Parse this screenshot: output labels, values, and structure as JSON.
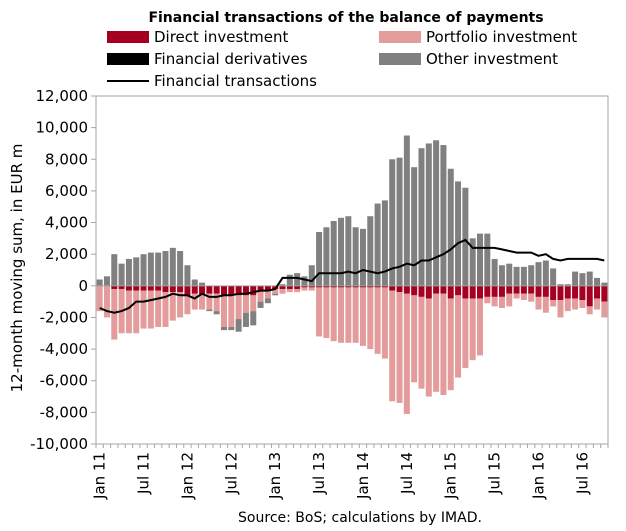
{
  "chart_data": {
    "type": "bar",
    "title": "Financial transactions of the balance of payments",
    "ylabel": "12-month moving sum, in EUR m",
    "source": "Source: BoS; calculations by IMAD.",
    "ylim": [
      -10000,
      12000
    ],
    "yticks": [
      -10000,
      -8000,
      -6000,
      -4000,
      -2000,
      0,
      2000,
      4000,
      6000,
      8000,
      10000,
      12000
    ],
    "ytick_labels": [
      "-10,000",
      "-8,000",
      "-6,000",
      "-4,000",
      "-2,000",
      "0",
      "2,000",
      "4,000",
      "6,000",
      "8,000",
      "10,000",
      "12,000"
    ],
    "xtick_labels": [
      {
        "index": 0,
        "label": "Jan 11"
      },
      {
        "index": 6,
        "label": "Jul 11"
      },
      {
        "index": 12,
        "label": "Jan 12"
      },
      {
        "index": 18,
        "label": "Jul 12"
      },
      {
        "index": 24,
        "label": "Jan 13"
      },
      {
        "index": 30,
        "label": "Jul 13"
      },
      {
        "index": 36,
        "label": "Jan 14"
      },
      {
        "index": 42,
        "label": "Jul 14"
      },
      {
        "index": 48,
        "label": "Jan 15"
      },
      {
        "index": 54,
        "label": "Jul 15"
      },
      {
        "index": 60,
        "label": "Jan 16"
      },
      {
        "index": 66,
        "label": "Jul 16"
      }
    ],
    "gridlines": false,
    "legend_position": "top",
    "series": [
      {
        "name": "Direct investment",
        "kind": "bar",
        "color": "#a50021",
        "values": [
          0,
          0,
          -200,
          -200,
          -300,
          -300,
          -300,
          -300,
          -300,
          -400,
          -400,
          -400,
          -600,
          -500,
          -600,
          -500,
          -500,
          -600,
          -600,
          -600,
          -600,
          -600,
          -300,
          -300,
          -200,
          -200,
          -200,
          -200,
          -100,
          -100,
          -100,
          -100,
          -100,
          -100,
          -100,
          -100,
          -100,
          -100,
          -100,
          -100,
          -300,
          -400,
          -500,
          -600,
          -700,
          -800,
          -500,
          -500,
          -800,
          -600,
          -800,
          -800,
          -800,
          -700,
          -700,
          -700,
          -500,
          -500,
          -500,
          -500,
          -700,
          -700,
          -900,
          -900,
          -800,
          -800,
          -900,
          -1300,
          -800,
          -1000
        ]
      },
      {
        "name": "Portfolio investment",
        "kind": "bar",
        "color": "#e39b9b",
        "values": [
          -1600,
          -2000,
          -3200,
          -2800,
          -2700,
          -2700,
          -2400,
          -2400,
          -2300,
          -2200,
          -1800,
          -1600,
          -1200,
          -1000,
          -900,
          -1000,
          -1100,
          -2000,
          -2000,
          -1500,
          -1100,
          -1000,
          -700,
          -500,
          -300,
          -300,
          -200,
          -200,
          -200,
          -200,
          -3100,
          -3200,
          -3400,
          -3500,
          -3500,
          -3500,
          -3700,
          -3900,
          -4200,
          -4500,
          -7000,
          -7000,
          -7600,
          -5500,
          -5800,
          -6200,
          -6200,
          -6400,
          -5800,
          -5200,
          -4400,
          -3900,
          -3600,
          -400,
          -600,
          -700,
          -800,
          -300,
          -400,
          -500,
          -800,
          -1000,
          -400,
          -1100,
          -800,
          -700,
          -500,
          -500,
          -700,
          -1000
        ]
      },
      {
        "name": "Financial derivatives",
        "kind": "bar",
        "color": "#000000",
        "values": [
          0,
          0,
          0,
          0,
          0,
          0,
          0,
          0,
          0,
          0,
          0,
          0,
          0,
          0,
          0,
          0,
          0,
          0,
          0,
          0,
          0,
          0,
          0,
          0,
          0,
          0,
          0,
          0,
          0,
          0,
          0,
          0,
          0,
          0,
          0,
          0,
          0,
          0,
          0,
          0,
          0,
          0,
          0,
          0,
          0,
          0,
          0,
          0,
          0,
          0,
          0,
          0,
          0,
          0,
          0,
          0,
          0,
          0,
          0,
          0,
          0,
          0,
          0,
          0,
          0,
          0,
          0,
          0,
          0,
          0
        ]
      },
      {
        "name": "Other investment",
        "kind": "bar",
        "color": "#808080",
        "values": [
          400,
          600,
          2000,
          1400,
          1700,
          1800,
          2000,
          2100,
          2100,
          2200,
          2400,
          2200,
          1300,
          400,
          200,
          -100,
          -200,
          -200,
          -200,
          -800,
          -900,
          -900,
          -400,
          -300,
          -100,
          100,
          700,
          800,
          600,
          1300,
          3400,
          3700,
          4100,
          4300,
          4400,
          3700,
          3600,
          4400,
          5200,
          5400,
          8000,
          8100,
          9500,
          7500,
          8700,
          9000,
          9200,
          8900,
          7400,
          6600,
          6200,
          3000,
          3300,
          3300,
          1700,
          1300,
          1400,
          1200,
          1200,
          1300,
          1500,
          1600,
          1100,
          100,
          100,
          900,
          800,
          900,
          500,
          200
        ]
      },
      {
        "name": "Financial transactions",
        "kind": "line",
        "color": "#000000",
        "values": [
          -1400,
          -1600,
          -1700,
          -1600,
          -1400,
          -1000,
          -1000,
          -900,
          -800,
          -700,
          -500,
          -600,
          -600,
          -800,
          -500,
          -700,
          -700,
          -600,
          -600,
          -500,
          -500,
          -400,
          -300,
          -300,
          -200,
          500,
          500,
          500,
          400,
          300,
          800,
          800,
          800,
          800,
          900,
          800,
          1000,
          900,
          800,
          900,
          1100,
          1200,
          1400,
          1300,
          1600,
          1600,
          1800,
          2000,
          2300,
          2700,
          2900,
          2400,
          2400,
          2400,
          2400,
          2300,
          2200,
          2100,
          2100,
          2100,
          1900,
          2000,
          1700,
          1600,
          1700,
          1700,
          1700,
          1700,
          1700,
          1600
        ]
      }
    ]
  }
}
